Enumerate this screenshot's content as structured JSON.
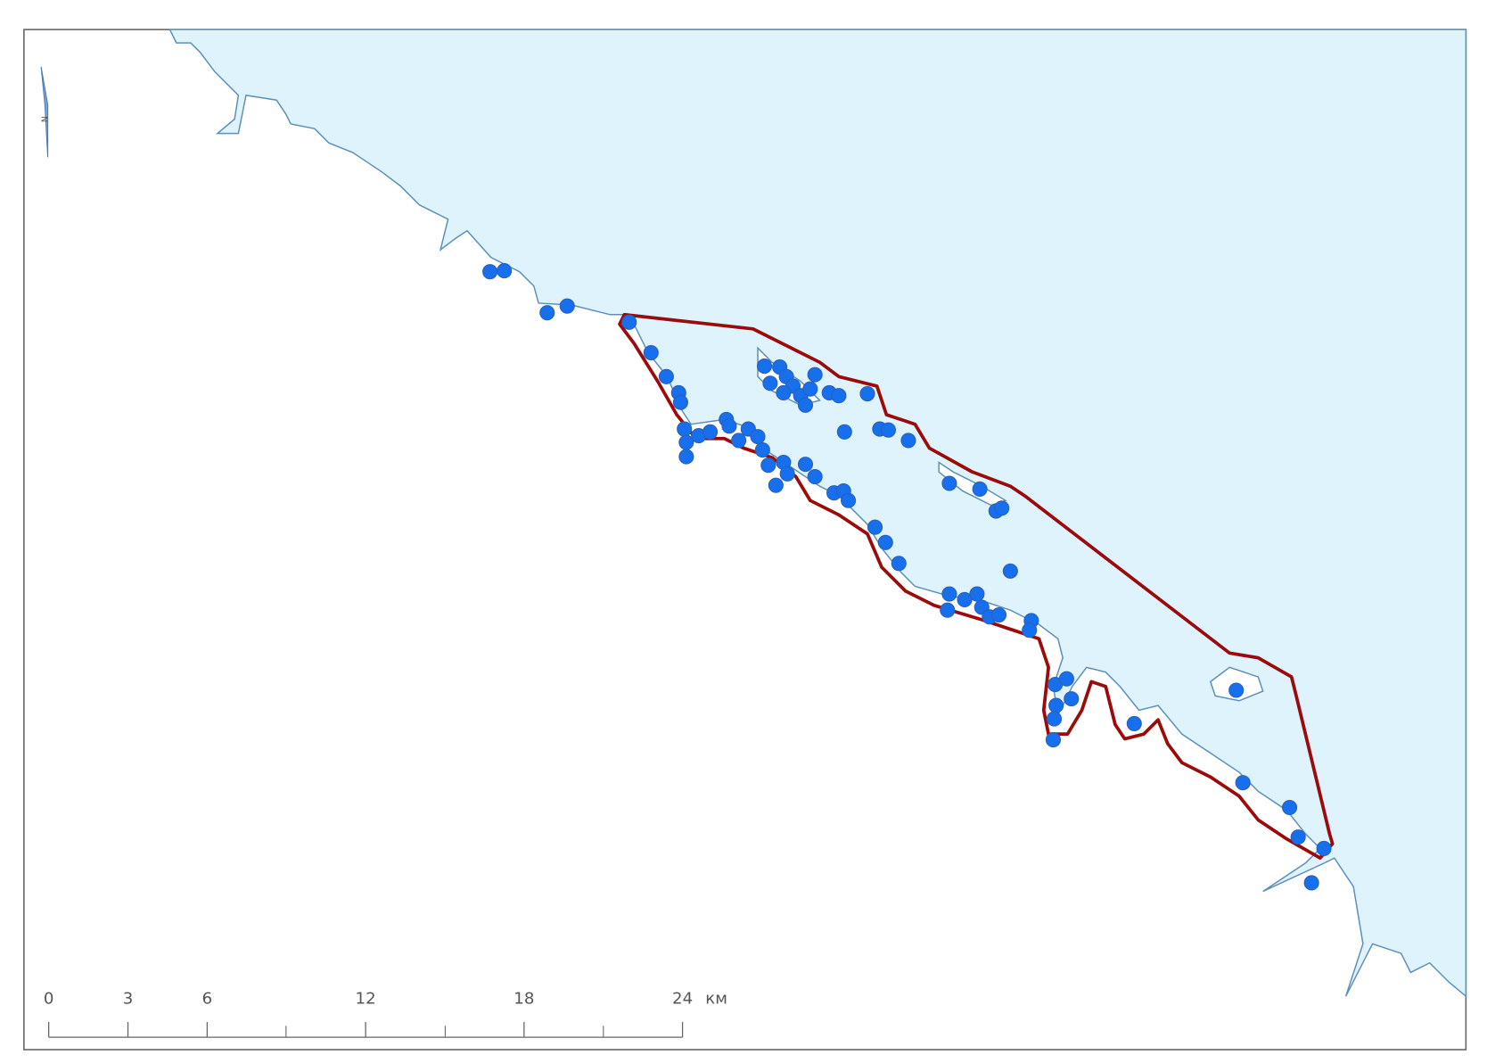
{
  "north_label": "N",
  "scale_bar": {
    "ticks": [
      0,
      3,
      6,
      12,
      18,
      24
    ],
    "unit": "км"
  }
}
